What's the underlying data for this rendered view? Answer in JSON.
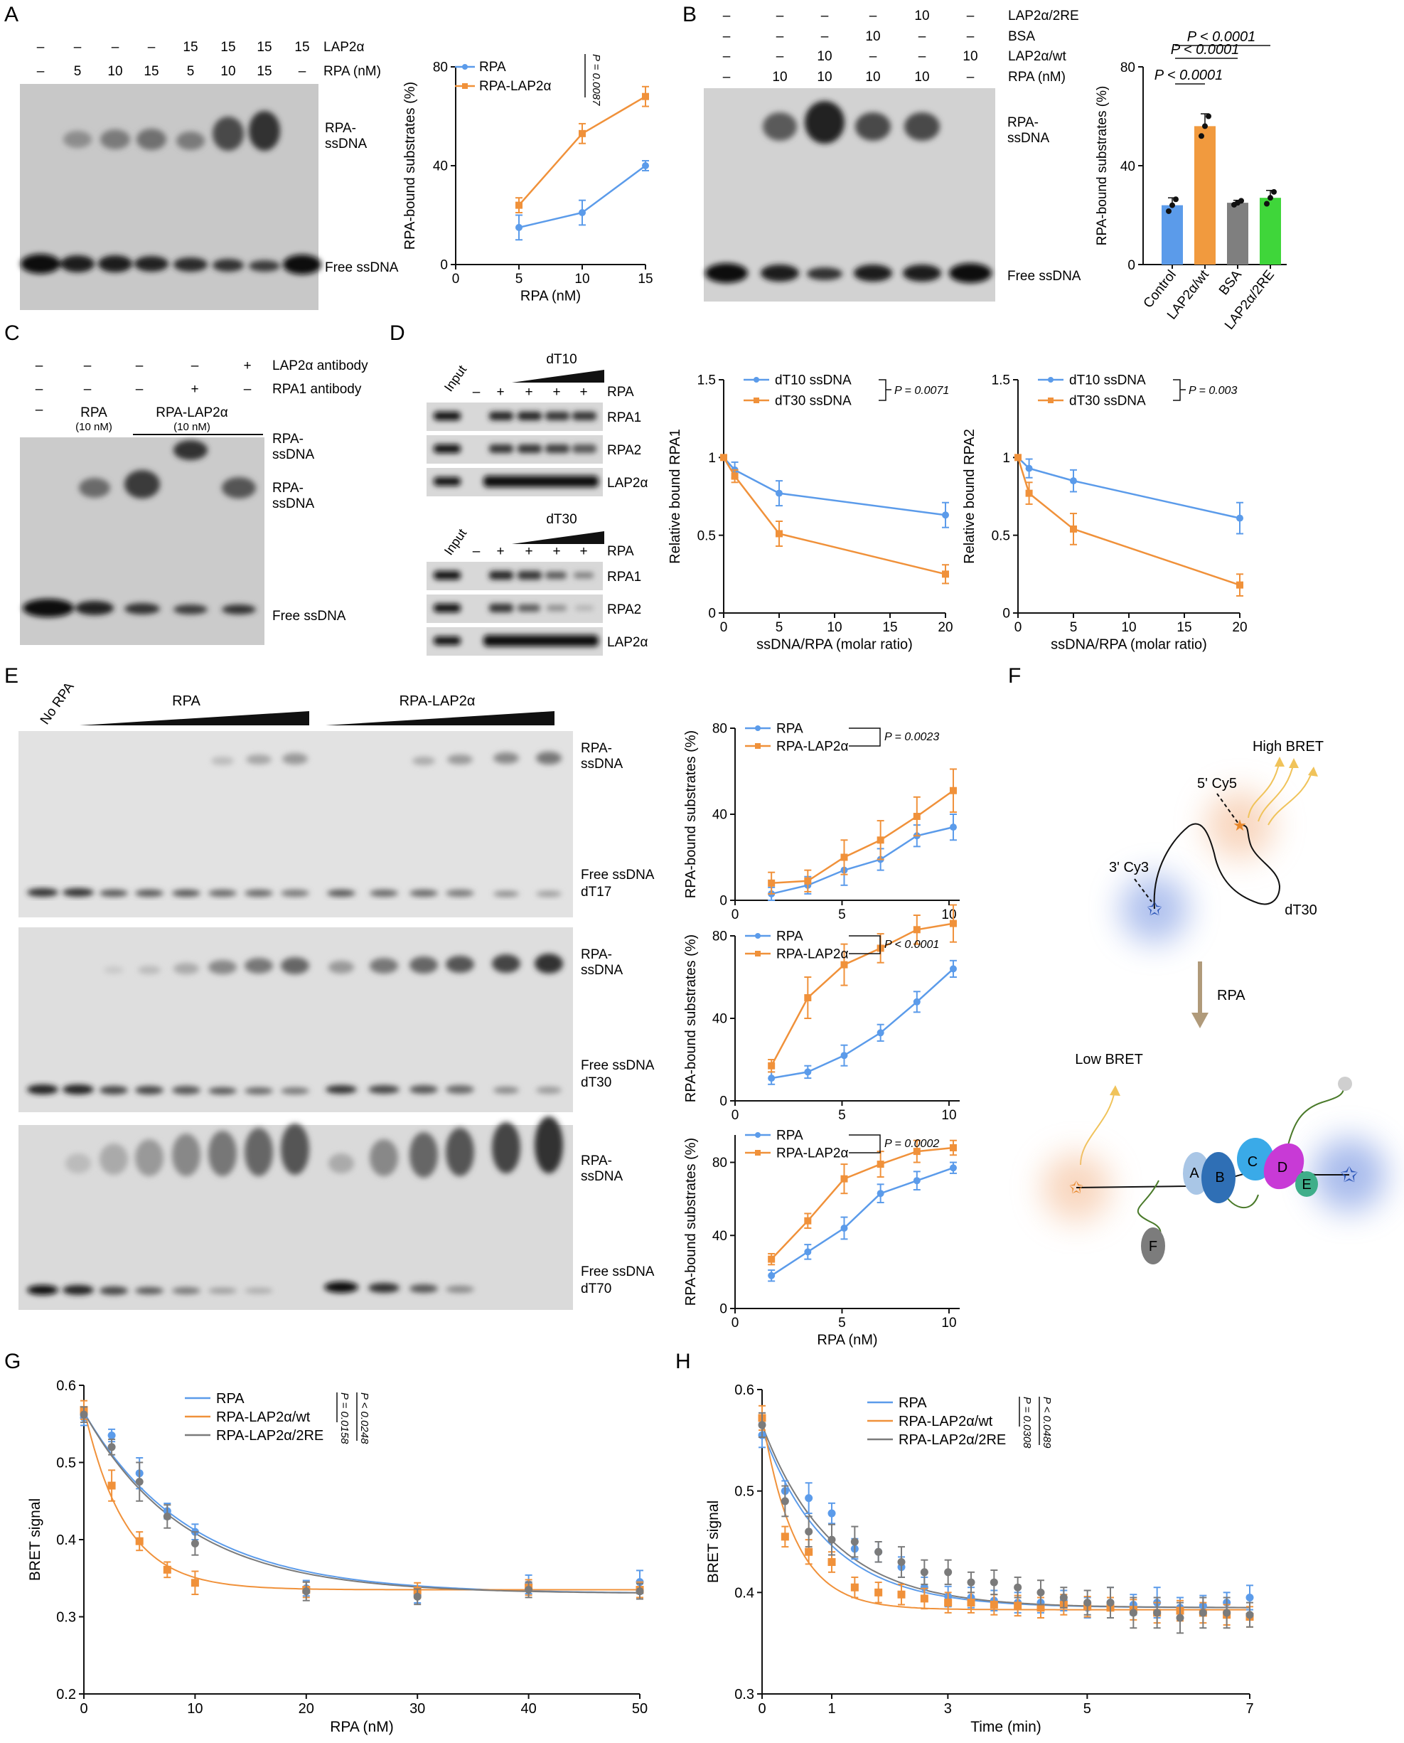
{
  "colors": {
    "blue": "#5b9bea",
    "orange": "#f0913a",
    "gray": "#7b7b7b",
    "green": "#3fd63a",
    "bar_blue": "#5b9bea",
    "bar_orange": "#f19a3e",
    "bar_gray": "#7f7f7f"
  },
  "panelA": {
    "letter": "A",
    "row_lap2a": {
      "label": "LAP2α",
      "cells": [
        "–",
        "–",
        "–",
        "–",
        "15",
        "15",
        "15",
        "15"
      ]
    },
    "row_rpa": {
      "label": "RPA (nM)",
      "cells": [
        "–",
        "5",
        "10",
        "15",
        "5",
        "10",
        "15",
        "–"
      ]
    },
    "band_top": "RPA-\nssDNA",
    "band_top_1": "RPA-",
    "band_top_2": "ssDNA",
    "band_bottom": "Free ssDNA"
  },
  "panelB": {
    "letter": "B",
    "rows": [
      {
        "label": "LAP2α/2RE",
        "cells": [
          "–",
          "–",
          "–",
          "–",
          "10",
          "–"
        ]
      },
      {
        "label": "BSA",
        "cells": [
          "–",
          "–",
          "–",
          "10",
          "–",
          "–"
        ]
      },
      {
        "label": "LAP2α/wt",
        "cells": [
          "–",
          "–",
          "10",
          "–",
          "–",
          "10"
        ]
      },
      {
        "label": "RPA (nM)",
        "cells": [
          "–",
          "10",
          "10",
          "10",
          "10",
          "–"
        ]
      }
    ],
    "band_top_1": "RPA-",
    "band_top_2": "ssDNA",
    "band_bottom": "Free ssDNA"
  },
  "panelC": {
    "letter": "C",
    "rows": [
      {
        "label": "LAP2α antibody",
        "cells": [
          "–",
          "–",
          "–",
          "–",
          "+"
        ]
      },
      {
        "label": "RPA1 antibody",
        "cells": [
          "–",
          "–",
          "–",
          "+",
          "–"
        ]
      }
    ],
    "dash": "–",
    "rpa_label": "RPA",
    "rpa_conc": "(10 nM)",
    "rpa_lap_label": "RPA-LAP2α",
    "rpa_lap_conc": "(10 nM)",
    "band1_1": "RPA-",
    "band1_2": "ssDNA",
    "band2_1": "RPA-",
    "band2_2": "ssDNA",
    "band_bottom": "Free ssDNA"
  },
  "panelD": {
    "letter": "D",
    "blot1": {
      "input": "Input",
      "title": "dT10",
      "signs": [
        "–",
        "+",
        "+",
        "+",
        "+"
      ],
      "rpa": "RPA",
      "rows": [
        "RPA1",
        "RPA2",
        "LAP2α"
      ]
    },
    "blot2": {
      "input": "Input",
      "title": "dT30",
      "signs": [
        "–",
        "+",
        "+",
        "+",
        "+"
      ],
      "rpa": "RPA",
      "rows": [
        "RPA1",
        "RPA2",
        "LAP2α"
      ]
    }
  },
  "panelE": {
    "letter": "E",
    "no_rpa": "No RPA",
    "rpa": "RPA",
    "rpa_lap": "RPA-LAP2α",
    "gels": [
      {
        "top_1": "RPA-",
        "top_2": "ssDNA",
        "free": "Free ssDNA",
        "substrate": "dT17"
      },
      {
        "top_1": "RPA-",
        "top_2": "ssDNA",
        "free": "Free ssDNA",
        "substrate": "dT30"
      },
      {
        "top_1": "RPA-",
        "top_2": "ssDNA",
        "free": "Free ssDNA",
        "substrate": "dT70"
      }
    ]
  },
  "panelF": {
    "letter": "F",
    "high_bret": "High BRET",
    "cy5": "5' Cy5",
    "cy3": "3' Cy3",
    "dt30": "dT30",
    "rpa": "RPA",
    "low_bret": "Low BRET",
    "domains": [
      "A",
      "B",
      "C",
      "D",
      "E",
      "F"
    ]
  },
  "panelG": {
    "letter": "G"
  },
  "panelH": {
    "letter": "H"
  },
  "chart_data": [
    {
      "id": "A_line",
      "type": "line",
      "xlabel": "RPA (nM)",
      "ylabel": "RPA-bound substrates (%)",
      "xlim": [
        0,
        15
      ],
      "ylim": [
        0,
        80
      ],
      "xticks": [
        0,
        5,
        10,
        15
      ],
      "yticks": [
        0,
        40,
        80
      ],
      "series": [
        {
          "name": "RPA",
          "color": "#5b9bea",
          "x": [
            5,
            10,
            15
          ],
          "y": [
            15,
            21,
            40
          ],
          "err": [
            5,
            5,
            2
          ]
        },
        {
          "name": "RPA-LAP2α",
          "color": "#f0913a",
          "x": [
            5,
            10,
            15
          ],
          "y": [
            24,
            53,
            68
          ],
          "err": [
            3,
            4,
            4
          ]
        }
      ],
      "pvalue": "P = 0.0087"
    },
    {
      "id": "B_bar",
      "type": "bar",
      "ylabel": "RPA-bound substrates (%)",
      "ylim": [
        0,
        80
      ],
      "yticks": [
        0,
        40,
        80
      ],
      "categories": [
        "Control",
        "LAP2α/wt",
        "BSA",
        "LAP2α/2RE"
      ],
      "values": [
        24,
        56,
        25,
        27
      ],
      "err": [
        3,
        5,
        1,
        3
      ],
      "bar_colors": [
        "#5b9bea",
        "#f19a3e",
        "#7f7f7f",
        "#3fd63a"
      ],
      "comparisons": [
        "P < 0.0001",
        "P < 0.0001",
        "P < 0.0001"
      ]
    },
    {
      "id": "D_left",
      "type": "line",
      "xlabel": "ssDNA/RPA (molar ratio)",
      "ylabel": "Relative bound RPA1",
      "xlim": [
        0,
        20
      ],
      "ylim": [
        0,
        1.5
      ],
      "xticks": [
        0,
        5,
        10,
        15,
        20
      ],
      "yticks": [
        0,
        0.5,
        1,
        1.5
      ],
      "series": [
        {
          "name": "dT10 ssDNA",
          "color": "#5b9bea",
          "x": [
            0,
            1,
            5,
            20
          ],
          "y": [
            1,
            0.92,
            0.77,
            0.63
          ],
          "err": [
            0,
            0.05,
            0.08,
            0.08
          ]
        },
        {
          "name": "dT30 ssDNA",
          "color": "#f0913a",
          "x": [
            0,
            1,
            5,
            20
          ],
          "y": [
            1,
            0.88,
            0.51,
            0.25
          ],
          "err": [
            0,
            0.04,
            0.08,
            0.06
          ]
        }
      ],
      "pvalue": "P = 0.0071"
    },
    {
      "id": "D_right",
      "type": "line",
      "xlabel": "ssDNA/RPA (molar ratio)",
      "ylabel": "Relative bound RPA2",
      "xlim": [
        0,
        20
      ],
      "ylim": [
        0,
        1.5
      ],
      "xticks": [
        0,
        5,
        10,
        15,
        20
      ],
      "yticks": [
        0,
        0.5,
        1,
        1.5
      ],
      "series": [
        {
          "name": "dT10 ssDNA",
          "color": "#5b9bea",
          "x": [
            0,
            1,
            5,
            20
          ],
          "y": [
            1,
            0.93,
            0.85,
            0.61
          ],
          "err": [
            0,
            0.06,
            0.07,
            0.1
          ]
        },
        {
          "name": "dT30 ssDNA",
          "color": "#f0913a",
          "x": [
            0,
            1,
            5,
            20
          ],
          "y": [
            1,
            0.77,
            0.54,
            0.18
          ],
          "err": [
            0,
            0.07,
            0.1,
            0.07
          ]
        }
      ],
      "pvalue": "P = 0.003"
    },
    {
      "id": "E1",
      "type": "line",
      "ylabel": "RPA-bound substrates (%)",
      "xlim": [
        0,
        10.5
      ],
      "ylim": [
        0,
        80
      ],
      "xticks": [
        0,
        5,
        10
      ],
      "yticks": [
        0,
        40,
        80
      ],
      "series": [
        {
          "name": "RPA",
          "color": "#5b9bea",
          "x": [
            1.7,
            3.4,
            5.1,
            6.8,
            8.5,
            10.2
          ],
          "y": [
            3,
            7,
            14,
            19,
            30,
            34
          ],
          "err": [
            3,
            4,
            7,
            5,
            5,
            6
          ]
        },
        {
          "name": "RPA-LAP2α",
          "color": "#f0913a",
          "x": [
            1.7,
            3.4,
            5.1,
            6.8,
            8.5,
            10.2
          ],
          "y": [
            8,
            9,
            20,
            28,
            39,
            51
          ],
          "err": [
            5,
            5,
            8,
            9,
            9,
            10
          ]
        }
      ],
      "pvalue": "P = 0.0023"
    },
    {
      "id": "E2",
      "type": "line",
      "ylabel": "RPA-bound substrates (%)",
      "xlim": [
        0,
        10.5
      ],
      "ylim": [
        0,
        80
      ],
      "xticks": [
        0,
        5,
        10
      ],
      "yticks": [
        0,
        40,
        80
      ],
      "series": [
        {
          "name": "RPA",
          "color": "#5b9bea",
          "x": [
            1.7,
            3.4,
            5.1,
            6.8,
            8.5,
            10.2
          ],
          "y": [
            11,
            14,
            22,
            33,
            48,
            64
          ],
          "err": [
            3,
            3,
            5,
            4,
            5,
            4
          ]
        },
        {
          "name": "RPA-LAP2α",
          "color": "#f0913a",
          "x": [
            1.7,
            3.4,
            5.1,
            6.8,
            8.5,
            10.2
          ],
          "y": [
            17,
            50,
            66,
            74,
            83,
            86
          ],
          "err": [
            3,
            10,
            10,
            7,
            7,
            9
          ]
        }
      ],
      "pvalue": "P < 0.0001"
    },
    {
      "id": "E3",
      "type": "line",
      "xlabel": "RPA (nM)",
      "ylabel": "RPA-bound substrates (%)",
      "xlim": [
        0,
        10.5
      ],
      "ylim": [
        0,
        95
      ],
      "xticks": [
        0,
        5,
        10
      ],
      "yticks": [
        0,
        40,
        80
      ],
      "series": [
        {
          "name": "RPA",
          "color": "#5b9bea",
          "x": [
            1.7,
            3.4,
            5.1,
            6.8,
            8.5,
            10.2
          ],
          "y": [
            18,
            31,
            44,
            63,
            70,
            77
          ],
          "err": [
            3,
            4,
            6,
            5,
            5,
            3
          ]
        },
        {
          "name": "RPA-LAP2α",
          "color": "#f0913a",
          "x": [
            1.7,
            3.4,
            5.1,
            6.8,
            8.5,
            10.2
          ],
          "y": [
            27,
            48,
            71,
            79,
            86,
            88
          ],
          "err": [
            3,
            4,
            8,
            7,
            6,
            4
          ]
        }
      ],
      "pvalue": "P = 0.0002"
    },
    {
      "id": "G",
      "type": "line",
      "xlabel": "RPA (nM)",
      "ylabel": "BRET signal",
      "xlim": [
        0,
        50
      ],
      "ylim": [
        0.2,
        0.6
      ],
      "xticks": [
        0,
        10,
        20,
        30,
        40,
        50
      ],
      "yticks": [
        0.2,
        0.3,
        0.4,
        0.5,
        0.6
      ],
      "series": [
        {
          "name": "RPA",
          "color": "#5b9bea",
          "x": [
            0,
            2.5,
            5,
            7.5,
            10,
            20,
            30,
            40,
            50
          ],
          "y": [
            0.558,
            0.535,
            0.486,
            0.437,
            0.41,
            0.337,
            0.328,
            0.342,
            0.345
          ],
          "err": [
            0.01,
            0.008,
            0.02,
            0.01,
            0.01,
            0.01,
            0.01,
            0.012,
            0.015
          ]
        },
        {
          "name": "RPA-LAP2α/wt",
          "color": "#f0913a",
          "x": [
            0,
            2.5,
            5,
            7.5,
            10,
            20,
            30,
            40,
            50
          ],
          "y": [
            0.568,
            0.47,
            0.398,
            0.361,
            0.344,
            0.335,
            0.334,
            0.338,
            0.335
          ],
          "err": [
            0.012,
            0.02,
            0.012,
            0.01,
            0.015,
            0.01,
            0.01,
            0.01,
            0.01
          ]
        },
        {
          "name": "RPA-LAP2α/2RE",
          "color": "#7b7b7b",
          "x": [
            0,
            2.5,
            5,
            7.5,
            10,
            20,
            30,
            40,
            50
          ],
          "y": [
            0.562,
            0.52,
            0.475,
            0.43,
            0.395,
            0.333,
            0.326,
            0.335,
            0.333
          ],
          "err": [
            0.01,
            0.01,
            0.025,
            0.015,
            0.015,
            0.012,
            0.01,
            0.01,
            0.01
          ]
        }
      ],
      "fits": [
        {
          "plateau": 0.33,
          "span": 0.235,
          "k": 0.105,
          "color": "#5b9bea"
        },
        {
          "plateau": 0.335,
          "span": 0.235,
          "k": 0.27,
          "color": "#f0913a"
        },
        {
          "plateau": 0.33,
          "span": 0.235,
          "k": 0.11,
          "color": "#7b7b7b"
        }
      ],
      "pvalues": [
        "P = 0.0158",
        "P < 0.0248"
      ]
    },
    {
      "id": "H",
      "type": "line",
      "xlabel": "Time (min)",
      "ylabel": "BRET signal",
      "xlim": [
        0,
        7
      ],
      "ylim": [
        0.3,
        0.6
      ],
      "xticks": [
        0,
        1,
        3,
        5,
        7
      ],
      "xtick_pos": [
        0,
        1,
        2.667,
        4.667,
        7
      ],
      "yticks": [
        0.3,
        0.4,
        0.5,
        0.6
      ],
      "series": [
        {
          "name": "RPA",
          "color": "#5b9bea",
          "x": [
            0,
            0.33,
            0.67,
            1,
            1.33,
            1.67,
            2,
            2.33,
            2.67,
            3,
            3.33,
            3.67,
            4,
            4.33,
            4.67,
            5,
            5.33,
            5.67,
            6,
            6.33,
            6.67,
            7
          ],
          "y": [
            0.555,
            0.5,
            0.493,
            0.478,
            0.443,
            0.44,
            0.425,
            0.405,
            0.396,
            0.395,
            0.392,
            0.39,
            0.39,
            0.392,
            0.385,
            0.39,
            0.388,
            0.39,
            0.385,
            0.387,
            0.39,
            0.395
          ],
          "err": [
            0.012,
            0.01,
            0.015,
            0.01,
            0.01,
            0.01,
            0.01,
            0.01,
            0.01,
            0.01,
            0.01,
            0.01,
            0.01,
            0.01,
            0.01,
            0.015,
            0.01,
            0.015,
            0.01,
            0.01,
            0.01,
            0.012
          ]
        },
        {
          "name": "RPA-LAP2α/wt",
          "color": "#f0913a",
          "x": [
            0,
            0.33,
            0.67,
            1,
            1.33,
            1.67,
            2,
            2.33,
            2.67,
            3,
            3.33,
            3.67,
            4,
            4.33,
            4.67,
            5,
            5.33,
            5.67,
            6,
            6.33,
            6.67,
            7
          ],
          "y": [
            0.572,
            0.455,
            0.44,
            0.43,
            0.405,
            0.4,
            0.398,
            0.394,
            0.39,
            0.39,
            0.388,
            0.387,
            0.385,
            0.388,
            0.386,
            0.385,
            0.383,
            0.38,
            0.382,
            0.38,
            0.378,
            0.376
          ],
          "err": [
            0.012,
            0.01,
            0.012,
            0.01,
            0.01,
            0.01,
            0.01,
            0.01,
            0.01,
            0.01,
            0.01,
            0.01,
            0.01,
            0.01,
            0.01,
            0.01,
            0.01,
            0.01,
            0.01,
            0.01,
            0.01,
            0.01
          ]
        },
        {
          "name": "RPA-LAP2α/2RE",
          "color": "#7b7b7b",
          "x": [
            0,
            0.33,
            0.67,
            1,
            1.33,
            1.67,
            2,
            2.33,
            2.67,
            3,
            3.33,
            3.67,
            4,
            4.33,
            4.67,
            5,
            5.33,
            5.67,
            6,
            6.33,
            6.67,
            7
          ],
          "y": [
            0.565,
            0.49,
            0.46,
            0.452,
            0.45,
            0.44,
            0.43,
            0.42,
            0.42,
            0.41,
            0.41,
            0.405,
            0.4,
            0.395,
            0.39,
            0.39,
            0.38,
            0.38,
            0.375,
            0.38,
            0.38,
            0.378
          ],
          "err": [
            0.012,
            0.015,
            0.015,
            0.015,
            0.015,
            0.01,
            0.015,
            0.012,
            0.012,
            0.01,
            0.012,
            0.01,
            0.012,
            0.01,
            0.012,
            0.015,
            0.015,
            0.015,
            0.015,
            0.015,
            0.015,
            0.012
          ]
        }
      ],
      "fits": [
        {
          "plateau": 0.385,
          "span": 0.175,
          "k": 1.05,
          "color": "#5b9bea"
        },
        {
          "plateau": 0.383,
          "span": 0.19,
          "k": 2.1,
          "color": "#f0913a"
        },
        {
          "plateau": 0.385,
          "span": 0.18,
          "k": 1.0,
          "color": "#7b7b7b"
        }
      ],
      "pvalues": [
        "P = 0.0308",
        "P < 0.0489"
      ]
    }
  ]
}
